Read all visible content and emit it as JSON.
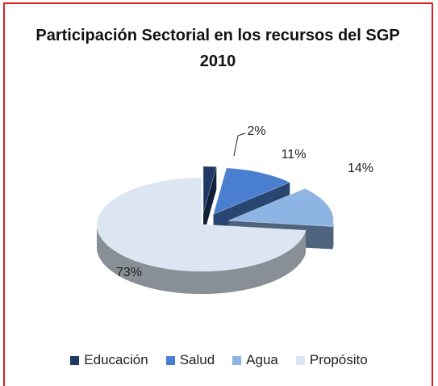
{
  "chart_data": {
    "type": "pie3d",
    "title": "Participación Sectorial en los recursos del SGP 2010",
    "categories": [
      "Educación",
      "Salud",
      "Agua",
      "Propósito"
    ],
    "values": [
      2,
      11,
      14,
      73
    ],
    "value_labels": [
      "2%",
      "11%",
      "14%",
      "73%"
    ],
    "colors": [
      "#1f3864",
      "#4a7fd0",
      "#8eb4e3",
      "#dce6f2"
    ],
    "legend": "bottom"
  }
}
